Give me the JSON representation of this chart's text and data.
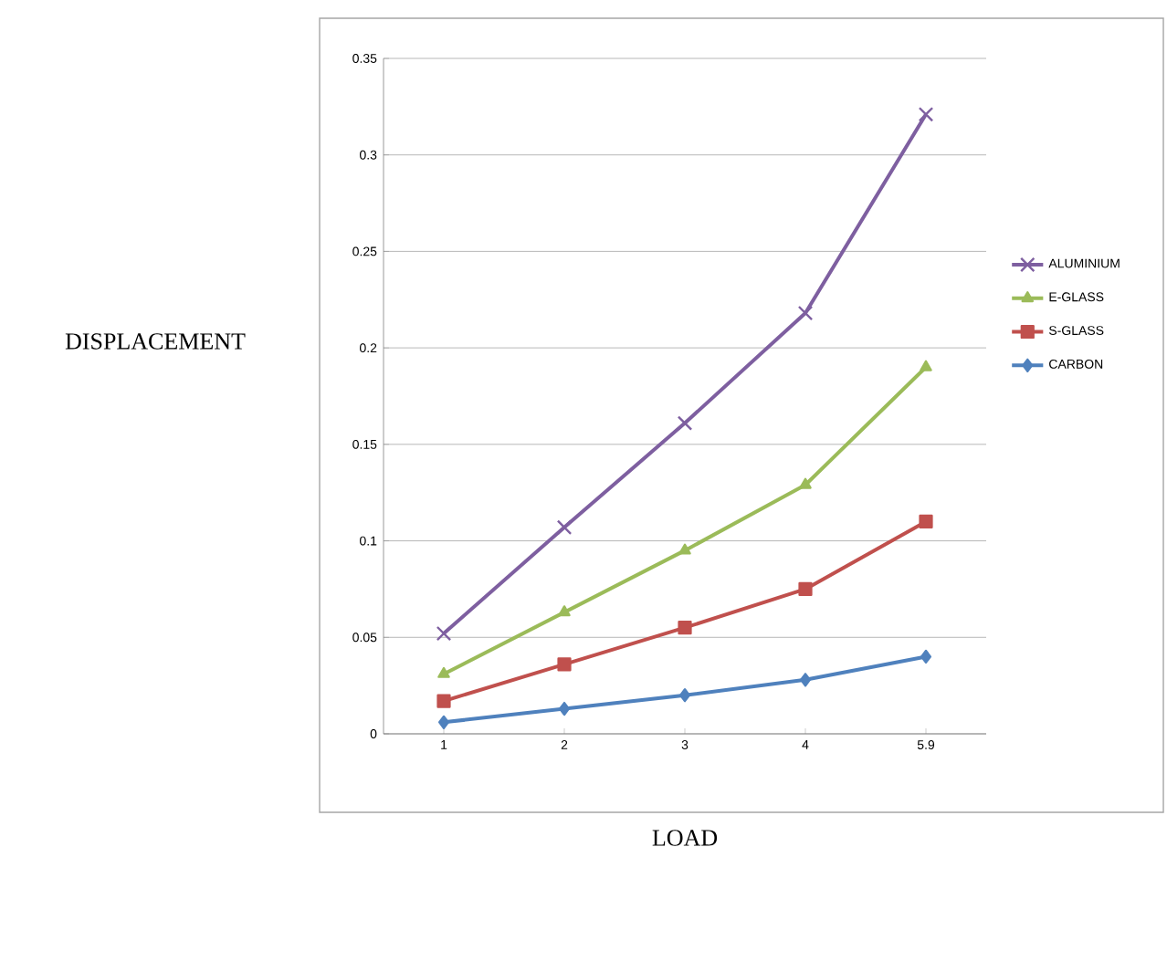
{
  "chart_data": {
    "type": "line",
    "xlabel": "LOAD",
    "ylabel": "DISPLACEMENT",
    "categories": [
      "1",
      "2",
      "3",
      "4",
      "5.9"
    ],
    "series": [
      {
        "name": "ALUMINIUM",
        "color": "#7e5fa0",
        "marker": "cross",
        "values": [
          0.052,
          0.107,
          0.161,
          0.218,
          0.321
        ]
      },
      {
        "name": "E-GLASS",
        "color": "#9bbb59",
        "marker": "triangle",
        "values": [
          0.031,
          0.063,
          0.095,
          0.129,
          0.19
        ]
      },
      {
        "name": "S-GLASS",
        "color": "#c0504d",
        "marker": "square",
        "values": [
          0.017,
          0.036,
          0.055,
          0.075,
          0.11
        ]
      },
      {
        "name": "CARBON",
        "color": "#4f81bd",
        "marker": "diamond",
        "values": [
          0.006,
          0.013,
          0.02,
          0.028,
          0.04
        ]
      }
    ],
    "ylim": [
      0,
      0.35
    ],
    "yticks": [
      0,
      0.05,
      0.1,
      0.15,
      0.2,
      0.25,
      0.3,
      0.35
    ],
    "grid": "y",
    "legend": "right",
    "line_style": "solid"
  }
}
